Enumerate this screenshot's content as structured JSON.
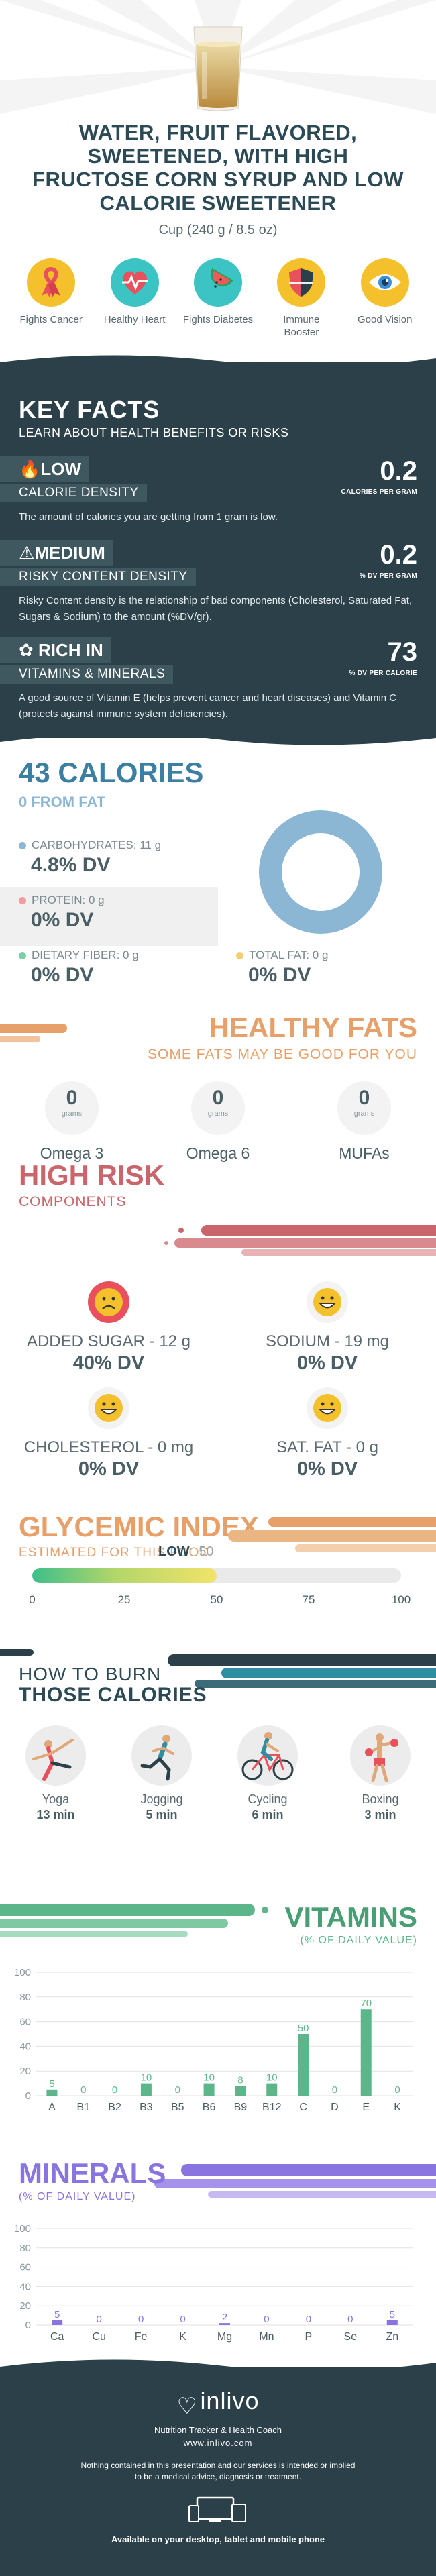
{
  "header": {
    "title": "WATER, FRUIT FLAVORED, SWEETENED, WITH HIGH FRUCTOSE CORN SYRUP AND LOW CALORIE SWEETENER",
    "serving": "Cup (240 g / 8.5 oz)"
  },
  "benefits": [
    {
      "label": "Fights Cancer",
      "icon": "ribbon-icon",
      "color": "#f4c02b"
    },
    {
      "label": "Healthy Heart",
      "icon": "heart-pulse-icon",
      "color": "#3cc3c4"
    },
    {
      "label": "Fights Diabetes",
      "icon": "watermelon-icon",
      "color": "#3cc3c4"
    },
    {
      "label": "Immune Booster",
      "icon": "shield-icon",
      "color": "#f4c02b"
    },
    {
      "label": "Good Vision",
      "icon": "eye-icon",
      "color": "#f4c02b"
    }
  ],
  "key_facts": {
    "title": "KEY FACTS",
    "subtitle": "LEARN ABOUT HEALTH BENEFITS OR RISKS",
    "calorie_density": {
      "level": "LOW",
      "label": "CALORIE DENSITY",
      "value": "0.2",
      "unit": "CALORIES PER GRAM",
      "description": "The amount of calories you are getting from 1 gram is low."
    },
    "risky_content": {
      "level": "MEDIUM",
      "label": "RISKY CONTENT DENSITY",
      "value": "0.2",
      "unit": "% DV PER GRAM",
      "description": "Risky Content density is the relationship of bad components (Cholesterol, Saturated Fat, Sugars & Sodium) to the amount (%DV/gr)."
    },
    "vitamins_minerals": {
      "level": "RICH IN",
      "label": "VITAMINS & MINERALS",
      "value": "73",
      "unit": "% DV PER CALORIE",
      "description": "A good source of Vitamin E (helps prevent cancer and heart diseases) and Vitamin C (protects against immune system deficiencies)."
    }
  },
  "calories": {
    "title": "43 CALORIES",
    "from_fat": "0 FROM FAT",
    "carbs_label": "CARBOHYDRATES: 11 g",
    "carbs_dv": "4.8% DV",
    "protein_label": "PROTEIN: 0 g",
    "protein_dv": "0% DV",
    "fiber_label": "DIETARY FIBER: 0 g",
    "fiber_dv": "0% DV",
    "fat_label": "TOTAL FAT: 0 g",
    "fat_dv": "0% DV",
    "colors": {
      "carbs": "#8bb6d4",
      "protein": "#f29ba0",
      "fiber": "#7ccfa6",
      "fat": "#f4d06b"
    }
  },
  "healthy_fats": {
    "title": "HEALTHY FATS",
    "subtitle": "SOME FATS MAY BE GOOD FOR YOU",
    "items": [
      {
        "value": "0",
        "unit": "grams",
        "name": "Omega 3"
      },
      {
        "value": "0",
        "unit": "grams",
        "name": "Omega 6"
      },
      {
        "value": "0",
        "unit": "grams",
        "name": "MUFAs"
      }
    ]
  },
  "high_risk": {
    "title": "HIGH RISK",
    "subtitle": "COMPONENTS",
    "items": [
      {
        "name": "ADDED SUGAR - 12 g",
        "dv": "40% DV",
        "face": "sad-face-icon"
      },
      {
        "name": "SODIUM - 19 mg",
        "dv": "0% DV",
        "face": "happy-face-icon"
      },
      {
        "name": "CHOLESTEROL - 0 mg",
        "dv": "0% DV",
        "face": "happy-face-icon"
      },
      {
        "name": "SAT. FAT - 0 g",
        "dv": "0% DV",
        "face": "happy-face-icon"
      }
    ]
  },
  "glycemic": {
    "title": "GLYCEMIC INDEX",
    "subtitle": "ESTIMATED FOR THIS FOOD",
    "level": "LOW",
    "value": "50",
    "fill_fraction": 0.5,
    "ticks": [
      "0",
      "25",
      "50",
      "75",
      "100"
    ]
  },
  "burn": {
    "title_line1": "HOW TO BURN",
    "title_line2": "THOSE CALORIES",
    "items": [
      {
        "name": "Yoga",
        "time": "13 min",
        "icon": "yoga-icon"
      },
      {
        "name": "Jogging",
        "time": "5 min",
        "icon": "jogging-icon"
      },
      {
        "name": "Cycling",
        "time": "6 min",
        "icon": "cycling-icon"
      },
      {
        "name": "Boxing",
        "time": "3 min",
        "icon": "boxing-icon"
      }
    ]
  },
  "vitamins": {
    "title": "VITAMINS",
    "subtitle": "(% OF DAILY VALUE)"
  },
  "minerals": {
    "title": "MINERALS",
    "subtitle": "(% OF DAILY VALUE)"
  },
  "chart_data": [
    {
      "type": "bar",
      "title": "VITAMINS",
      "subtitle": "(% OF DAILY VALUE)",
      "categories": [
        "A",
        "B1",
        "B2",
        "B3",
        "B5",
        "B6",
        "B9",
        "B12",
        "C",
        "D",
        "E",
        "K"
      ],
      "values": [
        5,
        0,
        0,
        10,
        0,
        10,
        8,
        10,
        50,
        0,
        70,
        0
      ],
      "ylim": [
        0,
        100
      ],
      "yticks": [
        "0",
        "20",
        "40",
        "60",
        "80",
        "100"
      ],
      "color": "#5db68a",
      "grid": true
    },
    {
      "type": "bar",
      "title": "MINERALS",
      "subtitle": "(% OF DAILY VALUE)",
      "categories": [
        "Ca",
        "Cu",
        "Fe",
        "K",
        "Mg",
        "Mn",
        "P",
        "Se",
        "Zn"
      ],
      "values": [
        5,
        0,
        0,
        0,
        2,
        0,
        0,
        0,
        5
      ],
      "ylim": [
        0,
        100
      ],
      "yticks": [
        "0",
        "20",
        "40",
        "60",
        "80",
        "100"
      ],
      "color": "#8a74e0",
      "grid": true
    }
  ],
  "footer": {
    "brand": "inlivo",
    "tagline": "Nutrition Tracker & Health Coach",
    "url": "www.inlivo.com",
    "disclaimer": "Nothing contained in this presentation and our services is intended or implied to be a medical advice, diagnosis or treatment.",
    "available": "Available on your desktop, tablet and mobile phone"
  }
}
